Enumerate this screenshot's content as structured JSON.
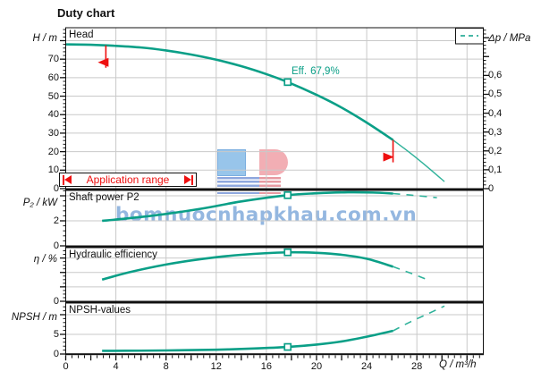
{
  "title": "Duty chart",
  "labels": {
    "head": "Head",
    "power": "Shaft power P2",
    "efficiency": "Hydraulic efficiency",
    "npsh": "NPSH-values"
  },
  "axes": {
    "h": "H / m",
    "dp": "Δp / MPa",
    "p2": "P₂ / kW",
    "eta": "η / %",
    "npsh": "NPSH / m",
    "q": "Q / m³/h"
  },
  "efficiency_callout": {
    "label": "Eff.",
    "value": "67,9%"
  },
  "application_range": {
    "label": "Application range",
    "q_min": 3.2,
    "q_max": 26.1
  },
  "watermark": {
    "text": "bomnuocnhapkhau.com.vn",
    "logo": "LP"
  },
  "colors": {
    "curve": "#0a9f87",
    "curve_extension": "#2fb29a",
    "red": "#ee0f0f",
    "grid": "#c9c9c9",
    "border": "#111111",
    "watermark_blue": "#7aa6d9"
  },
  "x_axis": {
    "label": "Q / m³/h",
    "min": 0,
    "max": 33.3,
    "label_values": [
      0,
      4,
      8,
      12,
      16,
      20,
      24,
      28
    ],
    "tick_labels": [
      "0",
      "4",
      "8",
      "12",
      "16",
      "20",
      "24",
      "28"
    ]
  },
  "chart_data": [
    {
      "id": "head",
      "type": "line",
      "title": "Head",
      "ylabel": "H / m",
      "ylim": [
        0,
        87
      ],
      "y_axis": {
        "label_values": [
          0,
          10,
          20,
          30,
          40,
          50,
          60,
          70
        ],
        "tick_labels": [
          "0",
          "10",
          "20",
          "30",
          "40",
          "50",
          "60",
          "70"
        ],
        "major_step": 10,
        "minor_step": 2
      },
      "y2_axis": {
        "label": "Δp / MPa",
        "ylim": [
          0,
          0.853
        ],
        "label_values": [
          0,
          0.1,
          0.2,
          0.3,
          0.4,
          0.5,
          0.6
        ],
        "tick_labels": [
          "0",
          "0,1",
          "0,2",
          "0,3",
          "0,4",
          "0,5",
          "0,6"
        ],
        "major_step": 0.1,
        "minor_step": 0.02
      },
      "legend": {
        "entry": "Δp / MPa",
        "symbol": "dashed-teal-line",
        "position": "top-right"
      },
      "series": [
        {
          "name": "head-curve",
          "style": "thick-solid",
          "points": [
            [
              0,
              78
            ],
            [
              2,
              77.8
            ],
            [
              4,
              77.2
            ],
            [
              6,
              76.3
            ],
            [
              8,
              74.7
            ],
            [
              10,
              72.5
            ],
            [
              12,
              69.7
            ],
            [
              14,
              66.2
            ],
            [
              16,
              61.9
            ],
            [
              17.7,
              57.6
            ],
            [
              20,
              50.7
            ],
            [
              22,
              43.8
            ],
            [
              24,
              35.7
            ],
            [
              26.1,
              26.3
            ]
          ]
        },
        {
          "name": "head-curve-extension",
          "style": "thin-solid",
          "points": [
            [
              26.1,
              26.3
            ],
            [
              27,
              21.7
            ],
            [
              28,
              16.4
            ],
            [
              29,
              10.8
            ],
            [
              30.2,
              3.8
            ]
          ]
        }
      ],
      "duty_point": {
        "q": 17.7,
        "value": 57.6
      },
      "range_markers": [
        {
          "q": 3.2,
          "direction": "left"
        },
        {
          "q": 26.1,
          "direction": "right"
        }
      ]
    },
    {
      "id": "power",
      "type": "line",
      "title": "Shaft power P2",
      "ylabel": "P₂ / kW",
      "ylim": [
        0,
        4.43
      ],
      "y_axis": {
        "label_values": [
          0,
          2
        ],
        "tick_labels": [
          "0",
          "2"
        ],
        "major_step": 2,
        "minor_step": 0.4
      },
      "series": [
        {
          "name": "p2-curve",
          "style": "thick-solid",
          "points": [
            [
              2.9,
              2.0
            ],
            [
              5,
              2.2
            ],
            [
              8,
              2.55
            ],
            [
              11,
              3.0
            ],
            [
              14,
              3.55
            ],
            [
              17.7,
              4.05
            ],
            [
              20,
              4.2
            ],
            [
              22.5,
              4.28
            ],
            [
              24.5,
              4.26
            ],
            [
              26.1,
              4.18
            ]
          ]
        },
        {
          "name": "p2-curve-extension",
          "style": "dashed",
          "points": [
            [
              26.1,
              4.18
            ],
            [
              27.6,
              4.05
            ],
            [
              29.6,
              3.85
            ]
          ]
        }
      ],
      "duty_point": {
        "q": 17.7,
        "value": 4.05
      }
    },
    {
      "id": "eff",
      "type": "line",
      "title": "Hydraulic efficiency",
      "ylabel": "η / %",
      "ylim": [
        0,
        74.4
      ],
      "y_axis": {
        "label_values": [
          0
        ],
        "tick_labels": [
          "0"
        ],
        "major_step": 20,
        "minor_step": 5
      },
      "series": [
        {
          "name": "efficiency-curve",
          "style": "thick-solid",
          "points": [
            [
              2.9,
              30
            ],
            [
              5,
              40
            ],
            [
              8,
              51
            ],
            [
              11,
              59
            ],
            [
              14,
              64.5
            ],
            [
              17.7,
              67.9
            ],
            [
              20,
              67.2
            ],
            [
              22,
              64.5
            ],
            [
              24,
              59
            ],
            [
              26.1,
              48
            ]
          ]
        },
        {
          "name": "efficiency-curve-extension",
          "style": "dashed",
          "points": [
            [
              26.1,
              48
            ],
            [
              27.5,
              39
            ],
            [
              29,
              29
            ]
          ]
        }
      ],
      "duty_point": {
        "q": 17.7,
        "value": 67.9
      }
    },
    {
      "id": "npsh",
      "type": "line",
      "title": "NPSH-values",
      "ylabel": "NPSH / m",
      "ylim": [
        0,
        12.95
      ],
      "y_axis": {
        "label_values": [
          0,
          5
        ],
        "tick_labels": [
          "0",
          "5"
        ],
        "major_step": 5,
        "minor_step": 1
      },
      "series": [
        {
          "name": "npsh-curve",
          "style": "thick-solid",
          "points": [
            [
              2.9,
              0.8
            ],
            [
              6,
              0.85
            ],
            [
              9,
              0.95
            ],
            [
              12,
              1.1
            ],
            [
              15,
              1.4
            ],
            [
              17.7,
              1.8
            ],
            [
              20,
              2.4
            ],
            [
              22,
              3.2
            ],
            [
              24,
              4.4
            ],
            [
              26.1,
              5.9
            ]
          ]
        },
        {
          "name": "npsh-curve-extension",
          "style": "dashed",
          "points": [
            [
              26.1,
              5.9
            ],
            [
              27.5,
              8.2
            ],
            [
              29,
              10.4
            ],
            [
              30.2,
              12.2
            ]
          ]
        }
      ],
      "duty_point": {
        "q": 17.7,
        "value": 1.8
      }
    }
  ]
}
